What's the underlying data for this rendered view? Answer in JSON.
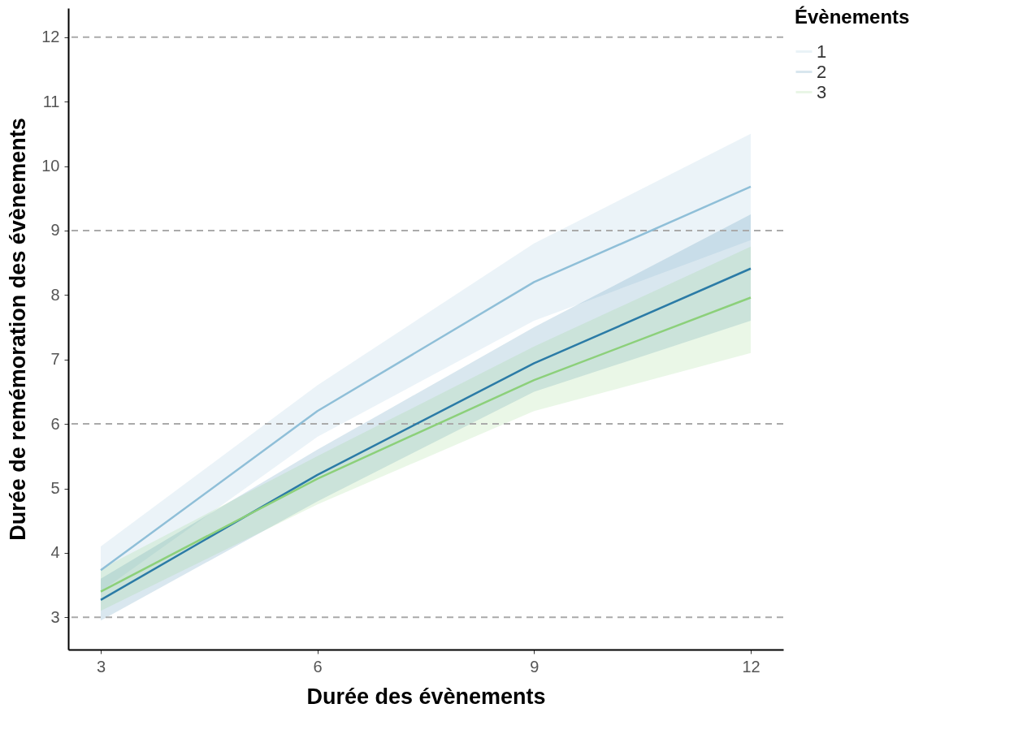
{
  "chart_data": {
    "type": "line",
    "xlabel": "Durée des évènements",
    "ylabel": "Durée de remémoration des évènements",
    "legend_title": "Évènements",
    "legend": "right",
    "grid": false,
    "x": [
      3,
      6,
      9,
      12
    ],
    "xlim": [
      2.55,
      12.45
    ],
    "ylim": [
      2.5,
      12.45
    ],
    "xticks": [
      3,
      6,
      9,
      12
    ],
    "yticks": [
      3,
      4,
      5,
      6,
      7,
      8,
      9,
      10,
      11,
      12
    ],
    "series": [
      {
        "name": "1",
        "color": "#8fbfd8",
        "values": [
          3.73,
          6.2,
          8.2,
          9.68
        ],
        "lower": [
          3.4,
          5.8,
          7.6,
          8.85
        ],
        "upper": [
          4.1,
          6.6,
          8.8,
          10.5
        ]
      },
      {
        "name": "2",
        "color": "#2b7ba6",
        "values": [
          3.27,
          5.21,
          6.94,
          8.41
        ],
        "lower": [
          2.95,
          4.8,
          6.5,
          7.6
        ],
        "upper": [
          3.6,
          5.6,
          7.5,
          9.25
        ]
      },
      {
        "name": "3",
        "color": "#8cd07a",
        "values": [
          3.4,
          5.15,
          6.68,
          7.96
        ],
        "lower": [
          3.1,
          4.75,
          6.2,
          7.1
        ],
        "upper": [
          3.75,
          5.5,
          7.2,
          8.75
        ]
      }
    ],
    "ref_lines": [
      {
        "axis": "y",
        "value": 3,
        "color": "#aaaaaa",
        "line_style": "dashed"
      },
      {
        "axis": "y",
        "value": 6,
        "color": "#aaaaaa",
        "line_style": "dashed"
      },
      {
        "axis": "y",
        "value": 9,
        "color": "#aaaaaa",
        "line_style": "dashed"
      },
      {
        "axis": "y",
        "value": 12,
        "color": "#aaaaaa",
        "line_style": "dashed"
      }
    ]
  }
}
